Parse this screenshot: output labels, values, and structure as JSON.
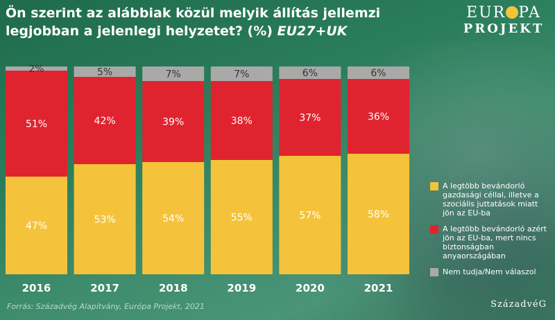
{
  "header": {
    "title_main": "Ön szerint az alábbiak közül melyik állítás jellemzi legjobban a jelenlegi helyzetet? (%)",
    "title_em": "EU27+UK"
  },
  "logo": {
    "line1_a": "EUR",
    "line1_b": "PA",
    "line2": "PROJEKT"
  },
  "source": "Forrás: Századvég Alapítvány, Európa Projekt, 2021",
  "brand": "SzázadvéG",
  "colors": {
    "economic": "#f5c33b",
    "safety": "#e0242f",
    "dontknow": "#a9a9a9"
  },
  "chart_data": {
    "type": "bar",
    "stacked": true,
    "categories": [
      "2016",
      "2017",
      "2018",
      "2019",
      "2020",
      "2021"
    ],
    "ylim": [
      0,
      100
    ],
    "series": [
      {
        "name": "A legtöbb bevándorló gazdasági céllal, illetve a szociális juttatások miatt jön az EU-ba",
        "values": [
          47,
          53,
          54,
          55,
          57,
          58
        ],
        "labels": [
          "47%",
          "53%",
          "54%",
          "55%",
          "57%",
          "58%"
        ]
      },
      {
        "name": "A legtöbb bevándorló azért jön az EU-ba, mert nincs biztonságban anyaországában",
        "values": [
          51,
          42,
          39,
          38,
          37,
          36
        ],
        "labels": [
          "51%",
          "42%",
          "39%",
          "38%",
          "37%",
          "36%"
        ]
      },
      {
        "name": "Nem tudja/Nem válaszol",
        "values": [
          2,
          5,
          7,
          7,
          6,
          6
        ],
        "labels": [
          "2%",
          "5%",
          "7%",
          "7%",
          "6%",
          "6%"
        ]
      }
    ],
    "legend_position": "right"
  }
}
